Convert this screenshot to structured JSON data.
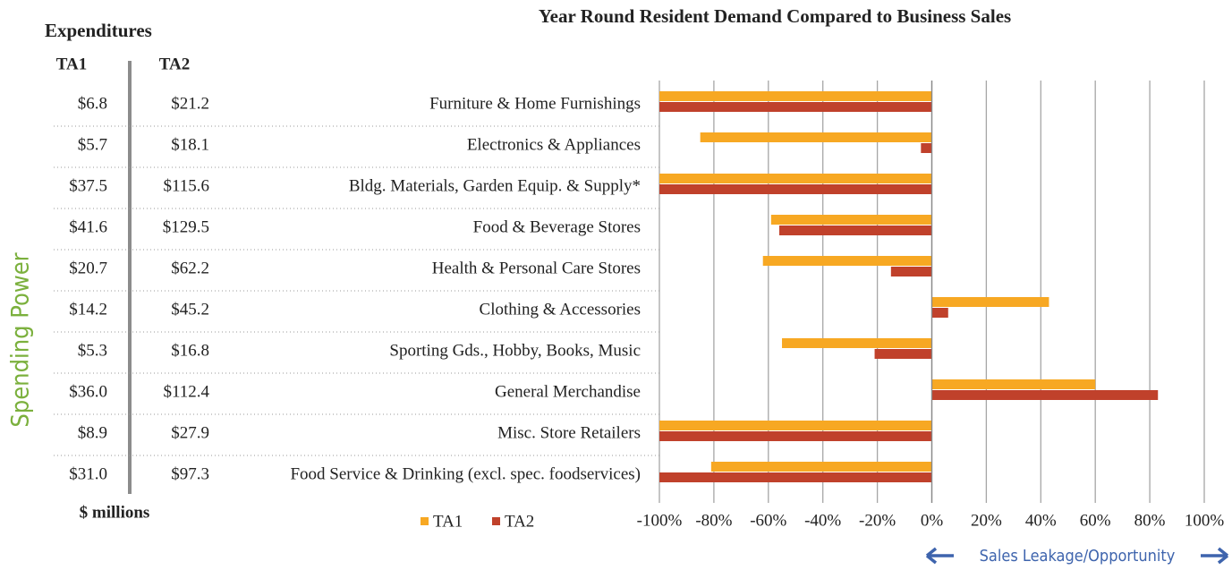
{
  "chart_data": {
    "type": "hbar",
    "title": "Year Round Resident Demand Compared to Business Sales",
    "categories": [
      "Furniture & Home Furnishings",
      "Electronics & Appliances",
      "Bldg. Materials, Garden Equip. & Supply*",
      "Food & Beverage Stores",
      "Health & Personal Care Stores",
      "Clothing & Accessories",
      "Sporting Gds., Hobby, Books, Music",
      "General Merchandise",
      "Misc. Store Retailers",
      "Food Service & Drinking (excl. spec. foodservices)"
    ],
    "series": [
      {
        "name": "TA1",
        "color": "#f7a823",
        "values": [
          -100,
          -85,
          -100,
          -59,
          -62,
          43,
          -55,
          60,
          -100,
          -81
        ]
      },
      {
        "name": "TA2",
        "color": "#c0412b",
        "values": [
          -100,
          -4,
          -100,
          -56,
          -15,
          6,
          -21,
          83,
          -100,
          -100
        ]
      }
    ],
    "xlim": [
      -100,
      100
    ],
    "xticks": [
      {
        "value": -100,
        "label": "-100%"
      },
      {
        "value": -80,
        "label": "-80%"
      },
      {
        "value": -60,
        "label": "-60%"
      },
      {
        "value": -40,
        "label": "-40%"
      },
      {
        "value": -20,
        "label": "-20%"
      },
      {
        "value": 0,
        "label": "0%"
      },
      {
        "value": 20,
        "label": "20%"
      },
      {
        "value": 40,
        "label": "40%"
      },
      {
        "value": 60,
        "label": "60%"
      },
      {
        "value": 80,
        "label": "80%"
      },
      {
        "value": 100,
        "label": "100%"
      }
    ],
    "grid": true,
    "legend": "bottom",
    "x_label": "Sales Leakage/Opportunity",
    "side_label": "Spending Power"
  },
  "table": {
    "title": "Expenditures",
    "columns": [
      "TA1",
      "TA2"
    ],
    "rows": [
      [
        "$6.8",
        "$21.2"
      ],
      [
        "$5.7",
        "$18.1"
      ],
      [
        "$37.5",
        "$115.6"
      ],
      [
        "$41.6",
        "$129.5"
      ],
      [
        "$20.7",
        "$62.2"
      ],
      [
        "$14.2",
        "$45.2"
      ],
      [
        "$5.3",
        "$16.8"
      ],
      [
        "$36.0",
        "$112.4"
      ],
      [
        "$8.9",
        "$27.9"
      ],
      [
        "$31.0",
        "$97.3"
      ]
    ],
    "unit": "$ millions"
  }
}
